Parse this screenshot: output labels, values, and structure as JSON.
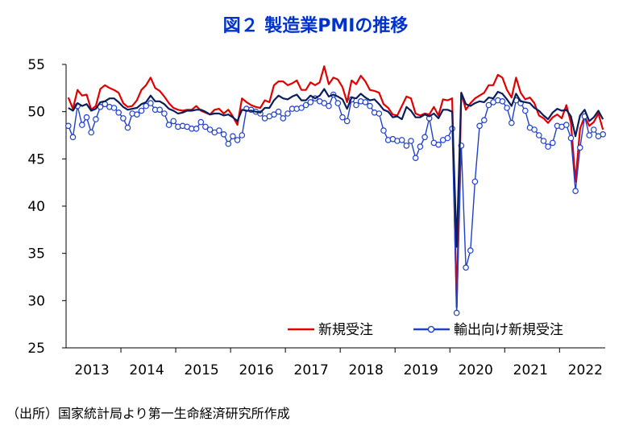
{
  "chart_data": {
    "type": "line",
    "title": "図２ 製造業PMIの推移",
    "xlabel": "",
    "ylabel": "",
    "ylim": [
      25,
      55
    ],
    "yticks": [
      25,
      30,
      35,
      40,
      45,
      50,
      55
    ],
    "x_start": "2013-01",
    "x_ticks": [
      "2013",
      "2014",
      "2015",
      "2016",
      "2017",
      "2018",
      "2019",
      "2020",
      "2021",
      "2022"
    ],
    "legend_position": "bottom-right",
    "grid": false,
    "series": [
      {
        "name": "新規受注",
        "color": "#e00000",
        "marker": "none",
        "values": [
          51.5,
          50.3,
          52.3,
          51.7,
          51.8,
          50.2,
          50.6,
          52.4,
          52.8,
          52.5,
          52.3,
          52.0,
          50.9,
          50.5,
          50.6,
          51.2,
          52.3,
          52.8,
          53.6,
          52.5,
          52.2,
          51.6,
          50.9,
          50.4,
          50.2,
          50.1,
          50.2,
          50.2,
          50.6,
          50.1,
          49.9,
          49.7,
          50.2,
          50.3,
          49.8,
          50.2,
          49.5,
          48.6,
          51.4,
          51.0,
          50.7,
          50.5,
          50.4,
          51.2,
          51.0,
          52.8,
          53.2,
          53.2,
          52.8,
          53.0,
          53.3,
          52.3,
          52.3,
          53.1,
          52.8,
          53.1,
          54.8,
          52.9,
          53.6,
          53.4,
          52.6,
          51.0,
          53.3,
          52.9,
          53.8,
          53.2,
          52.3,
          52.2,
          52.0,
          50.8,
          50.4,
          49.7,
          49.6,
          50.6,
          51.6,
          51.4,
          49.8,
          49.6,
          49.8,
          49.7,
          50.5,
          49.6,
          51.3,
          51.2,
          51.4,
          29.3,
          52.0,
          50.2,
          50.9,
          51.4,
          51.7,
          52.0,
          52.8,
          52.8,
          53.9,
          53.6,
          52.3,
          51.5,
          53.6,
          52.0,
          51.3,
          51.5,
          50.9,
          49.6,
          49.3,
          48.8,
          49.4,
          49.7,
          49.3,
          50.7,
          48.8,
          42.6,
          48.2,
          49.5,
          48.5,
          48.9,
          49.8,
          48.1
        ]
      },
      {
        "name": "",
        "color": "#0a1e5c",
        "marker": "none",
        "values": [
          50.4,
          50.1,
          50.9,
          50.6,
          50.8,
          50.1,
          50.3,
          51.0,
          51.1,
          51.4,
          51.4,
          51.0,
          50.5,
          50.2,
          50.3,
          50.4,
          50.8,
          51.0,
          51.7,
          51.1,
          51.1,
          50.8,
          50.3,
          50.1,
          49.8,
          49.9,
          50.1,
          50.1,
          50.2,
          50.2,
          50.0,
          49.7,
          49.8,
          49.8,
          49.6,
          49.7,
          49.4,
          49.0,
          50.2,
          50.1,
          50.1,
          50.0,
          49.9,
          50.4,
          50.4,
          51.2,
          51.7,
          51.4,
          51.3,
          51.6,
          51.8,
          51.2,
          51.2,
          51.7,
          51.4,
          51.7,
          52.4,
          51.6,
          51.8,
          51.6,
          51.3,
          50.3,
          51.5,
          51.4,
          51.9,
          51.5,
          51.2,
          51.3,
          50.8,
          50.2,
          50.0,
          49.4,
          49.5,
          49.2,
          50.5,
          50.1,
          49.4,
          49.4,
          49.7,
          49.5,
          49.8,
          49.3,
          50.2,
          50.2,
          50.0,
          35.7,
          52.0,
          50.8,
          50.6,
          50.9,
          51.1,
          51.0,
          51.5,
          51.4,
          52.1,
          51.9,
          51.3,
          50.6,
          51.9,
          51.1,
          51.0,
          50.9,
          50.4,
          50.1,
          49.6,
          49.2,
          49.9,
          50.3,
          50.1,
          50.2,
          49.5,
          47.4,
          49.6,
          50.2,
          49.0,
          49.4,
          50.1,
          49.2
        ]
      },
      {
        "name": "輸出向け新規受注",
        "color": "#1f3fcc",
        "marker": "circle",
        "values": [
          48.5,
          47.3,
          50.6,
          48.6,
          49.4,
          47.8,
          49.2,
          50.5,
          50.8,
          50.5,
          50.4,
          49.9,
          49.3,
          48.3,
          49.8,
          49.7,
          50.1,
          50.6,
          50.9,
          50.2,
          50.2,
          49.8,
          48.6,
          49.0,
          48.4,
          48.5,
          48.4,
          48.2,
          48.2,
          48.9,
          48.4,
          48.1,
          47.8,
          48.0,
          47.6,
          46.6,
          47.4,
          47.0,
          47.5,
          50.3,
          50.2,
          50.0,
          49.8,
          49.3,
          49.5,
          49.7,
          50.0,
          49.3,
          49.8,
          50.3,
          50.3,
          50.4,
          50.7,
          51.0,
          51.4,
          51.1,
          50.9,
          50.6,
          51.8,
          50.9,
          49.4,
          49.0,
          51.3,
          50.7,
          51.1,
          51.0,
          50.6,
          49.9,
          49.8,
          48.0,
          47.0,
          47.1,
          46.9,
          47.0,
          46.4,
          46.9,
          45.1,
          46.3,
          47.3,
          49.3,
          46.7,
          46.5,
          47.0,
          47.2,
          48.2,
          28.7,
          46.4,
          33.5,
          35.3,
          42.6,
          48.5,
          49.1,
          50.7,
          51.0,
          51.2,
          51.1,
          50.4,
          48.8,
          51.2,
          50.9,
          50.1,
          48.3,
          48.1,
          47.5,
          46.9,
          46.3,
          46.7,
          48.5,
          48.4,
          48.6,
          47.2,
          41.6,
          46.2,
          49.5,
          47.5,
          48.1,
          47.4,
          47.6
        ]
      }
    ]
  },
  "legend": {
    "new_orders": "新規受注",
    "export_orders": "輸出向け新規受注"
  },
  "source_note": "（出所）国家統計局より第一生命経済研究所作成"
}
